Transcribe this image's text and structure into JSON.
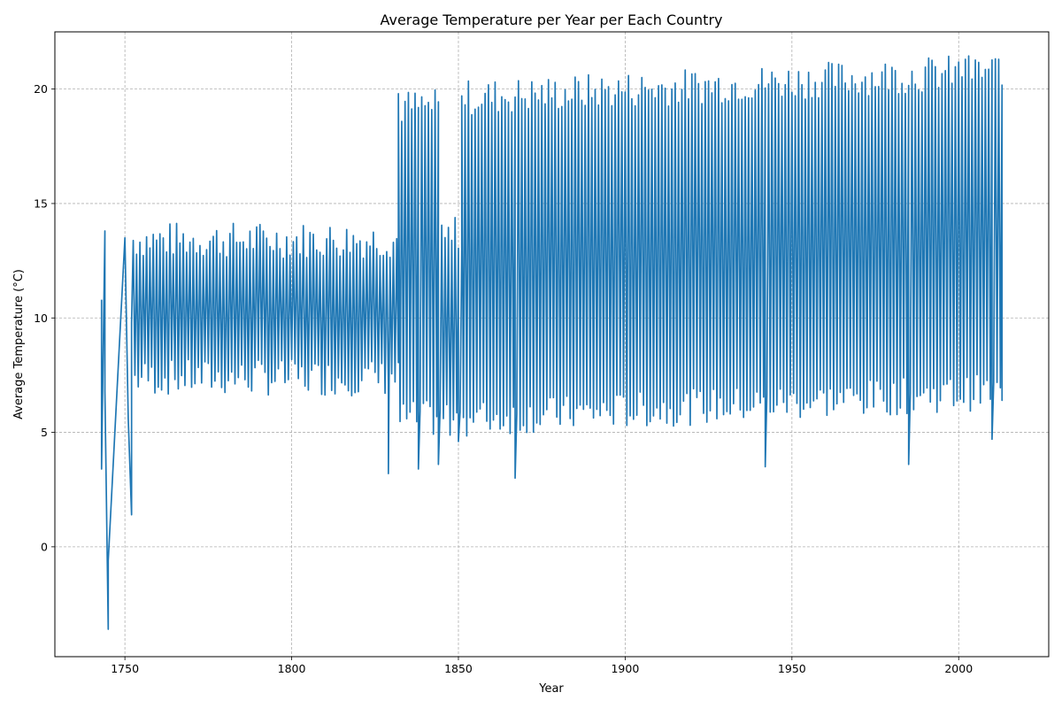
{
  "chart_data": {
    "type": "line",
    "title": "Average Temperature per Year per Each Country",
    "xlabel": "Year",
    "ylabel": "Average Temperature (°C)",
    "xlim": [
      1729,
      2027
    ],
    "ylim": [
      -4.8,
      22.5
    ],
    "xticks": [
      1750,
      1800,
      1850,
      1900,
      1950,
      2000
    ],
    "yticks": [
      0,
      5,
      10,
      15,
      20
    ],
    "grid": true,
    "series": [
      {
        "color": "#1f77b4",
        "anchor_points": [
          [
            1743,
            10.8
          ],
          [
            1743,
            3.4
          ],
          [
            1744,
            13.8
          ],
          [
            1744,
            6.8
          ],
          [
            1745,
            -3.6
          ],
          [
            1745,
            -0.6
          ],
          [
            1750,
            13.5
          ],
          [
            1751,
            5.6
          ],
          [
            1752,
            1.4
          ],
          [
            1752,
            9.8
          ],
          [
            1832,
            19.8
          ],
          [
            1829,
            3.2
          ],
          [
            1838,
            3.4
          ],
          [
            1844,
            3.6
          ],
          [
            1850,
            4.6
          ],
          [
            1851,
            19.7
          ],
          [
            1867,
            3.0
          ],
          [
            1942,
            3.5
          ],
          [
            1962,
            20.9
          ],
          [
            1985,
            3.6
          ],
          [
            2002,
            21.3
          ],
          [
            2010,
            4.7
          ],
          [
            2012,
            21.3
          ],
          [
            2013,
            6.4
          ],
          [
            2013,
            20.2
          ]
        ],
        "segments": [
          {
            "from": 1752.5,
            "to": 1832,
            "step": 0.5,
            "mean": 10.4,
            "amplitude": 3.0
          },
          {
            "from": 1832,
            "to": 1844,
            "step": 0.5,
            "mean": 12.4,
            "amplitude": 6.8
          },
          {
            "from": 1844,
            "to": 1851,
            "step": 0.5,
            "mean": 9.6,
            "amplitude": 4.0
          },
          {
            "from": 1851,
            "to": 2013,
            "step": 0.5,
            "mean": 12.6,
            "mean_end": 13.8,
            "amplitude": 7.0
          }
        ]
      }
    ]
  }
}
